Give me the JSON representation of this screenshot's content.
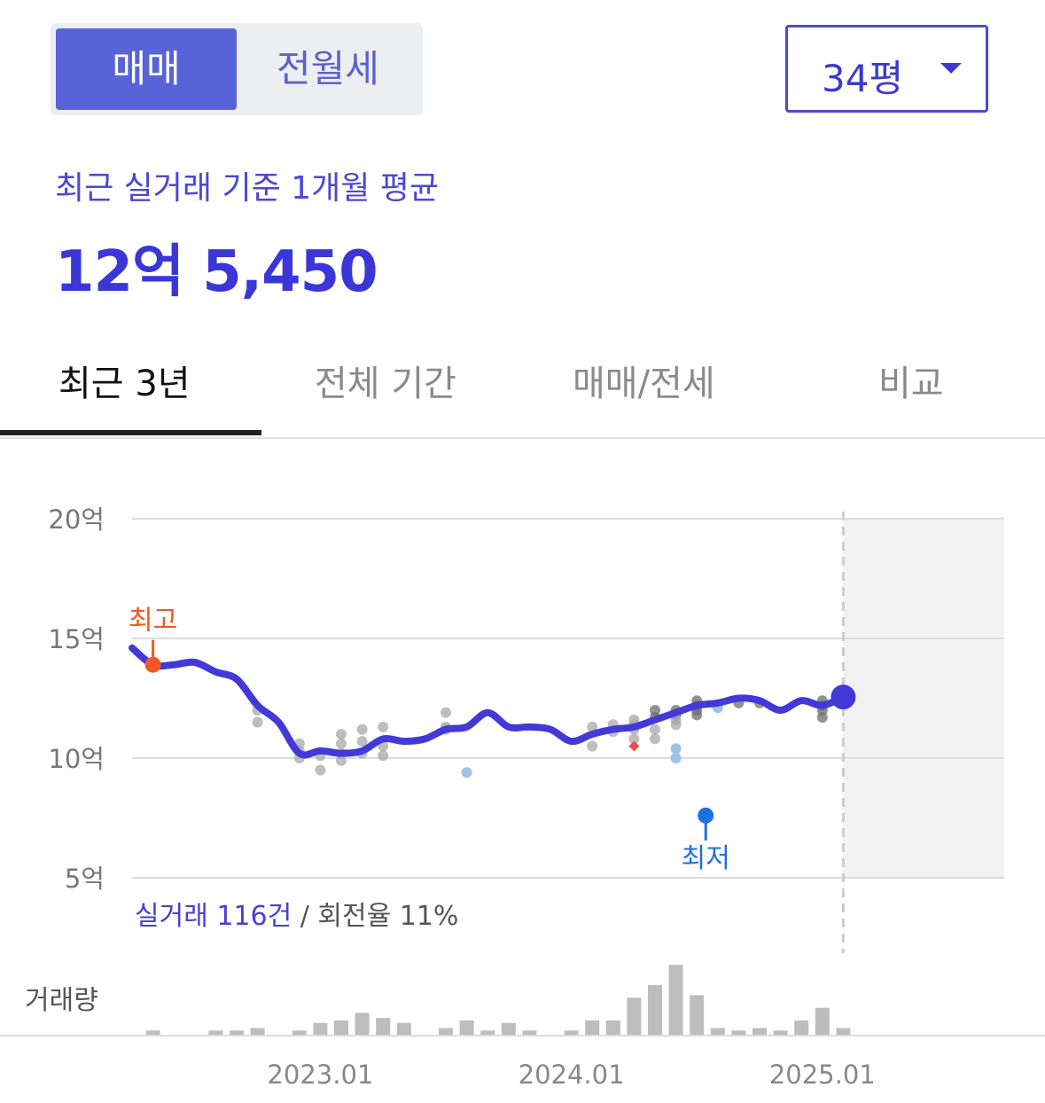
{
  "deal_tabs": {
    "active": "매매",
    "inactive": "전월세"
  },
  "size_select": {
    "value": "34평"
  },
  "summary": {
    "subtitle": "최근 실거래 기준 1개월 평균",
    "price": "12억 5,450"
  },
  "period_tabs": [
    {
      "label": "최근 3년",
      "active": true
    },
    {
      "label": "전체 기간",
      "active": false
    },
    {
      "label": "매매/전세",
      "active": false
    },
    {
      "label": "비교",
      "active": false
    }
  ],
  "trade_info": {
    "count_text": "실거래 116건",
    "sep": " / ",
    "turnover_text": "회전율 11%"
  },
  "volume_label": "거래량",
  "colors": {
    "accent": "#4338d8",
    "grid": "#dddddd",
    "future_shade": "#f2f2f2",
    "high": "#f05a22",
    "low": "#1f6fe0",
    "dot": "#a8a8a8",
    "dot_dark": "#6e6e6e",
    "dot_blue": "#9ec2ea",
    "dot_red": "#ee4b4b",
    "bar": "#bdbdbd"
  },
  "chart_data": {
    "type": "line",
    "x_range": [
      "2022-04",
      "2025-06"
    ],
    "ylim": [
      5,
      20
    ],
    "y_ticks": [
      {
        "v": 20,
        "label": "20억"
      },
      {
        "v": 15,
        "label": "15억"
      },
      {
        "v": 10,
        "label": "10억"
      },
      {
        "v": 5,
        "label": "5억"
      }
    ],
    "x_ticks": [
      {
        "t": "2023-01",
        "label": "2023.01"
      },
      {
        "t": "2024-01",
        "label": "2024.01"
      },
      {
        "t": "2025-01",
        "label": "2025.01"
      }
    ],
    "now": "2025-02",
    "series": [
      {
        "points": [
          [
            "2022-04",
            14.6
          ],
          [
            "2022-05",
            13.9
          ],
          [
            "2022-06",
            13.9
          ],
          [
            "2022-07",
            14.0
          ],
          [
            "2022-08",
            13.6
          ],
          [
            "2022-09",
            13.3
          ],
          [
            "2022-10",
            12.2
          ],
          [
            "2022-11",
            11.5
          ],
          [
            "2022-12",
            10.2
          ],
          [
            "2023-01",
            10.3
          ],
          [
            "2023-02",
            10.2
          ],
          [
            "2023-03",
            10.3
          ],
          [
            "2023-04",
            10.8
          ],
          [
            "2023-05",
            10.7
          ],
          [
            "2023-06",
            10.8
          ],
          [
            "2023-07",
            11.2
          ],
          [
            "2023-08",
            11.3
          ],
          [
            "2023-09",
            11.9
          ],
          [
            "2023-10",
            11.3
          ],
          [
            "2023-11",
            11.3
          ],
          [
            "2023-12",
            11.2
          ],
          [
            "2024-01",
            10.7
          ],
          [
            "2024-02",
            11.0
          ],
          [
            "2024-03",
            11.2
          ],
          [
            "2024-04",
            11.3
          ],
          [
            "2024-05",
            11.6
          ],
          [
            "2024-06",
            11.9
          ],
          [
            "2024-07",
            12.2
          ],
          [
            "2024-08",
            12.3
          ],
          [
            "2024-09",
            12.5
          ],
          [
            "2024-10",
            12.4
          ],
          [
            "2024-11",
            12.0
          ],
          [
            "2024-12",
            12.4
          ],
          [
            "2025-01",
            12.2
          ],
          [
            "2025-02",
            12.55
          ]
        ]
      }
    ],
    "transactions": [
      [
        "2022-10",
        11.5
      ],
      [
        "2022-10",
        12.0
      ],
      [
        "2022-12",
        10.6
      ],
      [
        "2022-12",
        10.3
      ],
      [
        "2022-12",
        10.0
      ],
      [
        "2023-01",
        9.5
      ],
      [
        "2023-01",
        10.1
      ],
      [
        "2023-02",
        10.6
      ],
      [
        "2023-02",
        10.2
      ],
      [
        "2023-02",
        9.9
      ],
      [
        "2023-02",
        11.0
      ],
      [
        "2023-03",
        11.2
      ],
      [
        "2023-03",
        10.7
      ],
      [
        "2023-03",
        10.2
      ],
      [
        "2023-04",
        11.3
      ],
      [
        "2023-04",
        10.5
      ],
      [
        "2023-04",
        10.1
      ],
      [
        "2023-07",
        11.3
      ],
      [
        "2023-07",
        11.2
      ],
      [
        "2023-07",
        11.9
      ],
      [
        "2024-02",
        10.5
      ],
      [
        "2024-02",
        11.3
      ],
      [
        "2024-03",
        11.4
      ],
      [
        "2024-03",
        11.1
      ],
      [
        "2024-04",
        11.6
      ],
      [
        "2024-04",
        11.4
      ],
      [
        "2024-04",
        11.2
      ],
      [
        "2024-04",
        10.8
      ],
      [
        "2024-05",
        12.0
      ],
      [
        "2024-05",
        11.7
      ],
      [
        "2024-05",
        11.2
      ],
      [
        "2024-05",
        10.8
      ],
      [
        "2024-06",
        12.0
      ],
      [
        "2024-06",
        11.8
      ],
      [
        "2024-06",
        11.6
      ],
      [
        "2024-06",
        11.4
      ],
      [
        "2024-07",
        12.4
      ],
      [
        "2024-07",
        12.2
      ],
      [
        "2024-07",
        12.0
      ],
      [
        "2024-07",
        11.8
      ],
      [
        "2024-09",
        12.3
      ],
      [
        "2024-10",
        12.3
      ],
      [
        "2025-01",
        12.4
      ],
      [
        "2025-01",
        12.2
      ],
      [
        "2025-01",
        12.0
      ],
      [
        "2025-01",
        11.7
      ]
    ],
    "transactions_blue": [
      [
        "2023-08",
        9.4
      ],
      [
        "2024-06",
        10.4
      ],
      [
        "2024-06",
        10.0
      ],
      [
        "2024-08",
        12.1
      ]
    ],
    "transactions_red": [
      [
        "2024-04",
        10.5
      ]
    ],
    "high": {
      "t": "2022-05",
      "v": 13.9,
      "label": "최고"
    },
    "low": {
      "t": "2024-07",
      "v": 7.6,
      "label": "최저"
    },
    "volume": [
      [
        "2022-05",
        1
      ],
      [
        "2022-08",
        1
      ],
      [
        "2022-09",
        1
      ],
      [
        "2022-10",
        1.5
      ],
      [
        "2022-12",
        1
      ],
      [
        "2023-01",
        2.5
      ],
      [
        "2023-02",
        3
      ],
      [
        "2023-03",
        4.5
      ],
      [
        "2023-04",
        3.5
      ],
      [
        "2023-05",
        2.5
      ],
      [
        "2023-07",
        1.5
      ],
      [
        "2023-08",
        3
      ],
      [
        "2023-09",
        1
      ],
      [
        "2023-10",
        2.5
      ],
      [
        "2023-11",
        1
      ],
      [
        "2024-01",
        1
      ],
      [
        "2024-02",
        3
      ],
      [
        "2024-03",
        3
      ],
      [
        "2024-04",
        7.5
      ],
      [
        "2024-05",
        10
      ],
      [
        "2024-06",
        14
      ],
      [
        "2024-07",
        8
      ],
      [
        "2024-08",
        1.5
      ],
      [
        "2024-09",
        1
      ],
      [
        "2024-10",
        1.5
      ],
      [
        "2024-11",
        1
      ],
      [
        "2024-12",
        3
      ],
      [
        "2025-01",
        5.5
      ],
      [
        "2025-02",
        1.5
      ]
    ]
  }
}
